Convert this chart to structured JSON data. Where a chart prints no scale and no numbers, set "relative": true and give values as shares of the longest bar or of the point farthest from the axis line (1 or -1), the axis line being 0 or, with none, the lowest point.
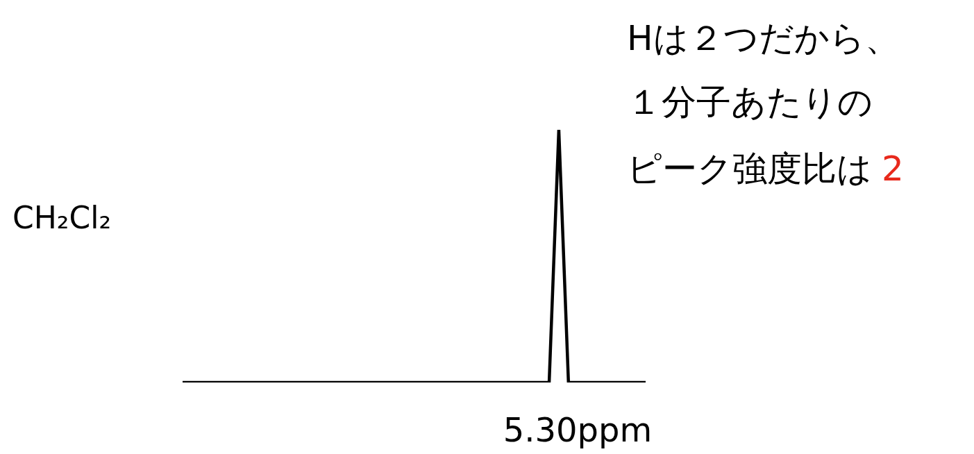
{
  "chart_data": {
    "type": "line",
    "relative": true,
    "color": "#000000",
    "categories": [
      null,
      null,
      null,
      null,
      null,
      null,
      null,
      null,
      null,
      null,
      null,
      null,
      null,
      null,
      null,
      null,
      null,
      null,
      null,
      null,
      null,
      null,
      null,
      null,
      null,
      null,
      null,
      null,
      null,
      null,
      null,
      null,
      null,
      null,
      null,
      null,
      null,
      null,
      null,
      null,
      null,
      null,
      null,
      null,
      null,
      null,
      null,
      null,
      null
    ],
    "values": [
      0,
      0,
      0,
      0,
      0,
      0,
      0,
      0,
      0,
      0,
      0,
      0,
      0,
      0,
      0,
      0,
      0,
      0,
      0,
      0,
      0,
      0,
      0,
      0,
      0,
      0,
      0,
      0,
      0,
      0,
      0,
      0,
      0,
      0,
      0,
      0,
      0,
      0,
      0,
      1,
      0,
      0,
      0,
      0,
      0,
      0,
      0,
      0,
      0
    ],
    "annotations": [
      "CH₂Cl₂",
      "5.30ppm",
      "Hは２つだから、",
      "１分子あたりの",
      "ピーク強度比は",
      "2"
    ]
  }
}
